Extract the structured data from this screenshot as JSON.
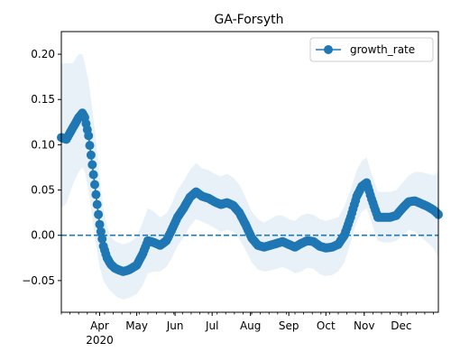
{
  "chart_data": {
    "type": "line",
    "title": "GA-Forsyth",
    "xlabel": "",
    "ylabel": "",
    "xlim": [
      "2020-03-01",
      "2020-12-31"
    ],
    "ylim": [
      -0.085,
      0.225
    ],
    "yticks": [
      -0.05,
      0.0,
      0.05,
      0.1,
      0.15,
      0.2
    ],
    "ytick_labels": [
      "−0.05",
      "0.00",
      "0.05",
      "0.10",
      "0.15",
      "0.20"
    ],
    "xticks": [
      {
        "date": "2020-04-01",
        "label": "Apr",
        "sublabel": "2020"
      },
      {
        "date": "2020-05-01",
        "label": "May",
        "sublabel": ""
      },
      {
        "date": "2020-06-01",
        "label": "Jun",
        "sublabel": ""
      },
      {
        "date": "2020-07-01",
        "label": "Jul",
        "sublabel": ""
      },
      {
        "date": "2020-08-01",
        "label": "Aug",
        "sublabel": ""
      },
      {
        "date": "2020-09-01",
        "label": "Sep",
        "sublabel": ""
      },
      {
        "date": "2020-10-01",
        "label": "Oct",
        "sublabel": ""
      },
      {
        "date": "2020-11-01",
        "label": "Nov",
        "sublabel": ""
      },
      {
        "date": "2020-12-01",
        "label": "Dec",
        "sublabel": ""
      }
    ],
    "grid": false,
    "legend": {
      "position": "top-right",
      "entries": [
        "growth_rate"
      ]
    },
    "reference_line": {
      "y": 0.0,
      "style": "dashed"
    },
    "colors": {
      "series": "#1f77b4",
      "band": "#1f77b4"
    },
    "series": [
      {
        "name": "growth_rate",
        "x": [
          "2020-03-01",
          "2020-03-05",
          "2020-03-10",
          "2020-03-15",
          "2020-03-18",
          "2020-03-20",
          "2020-03-23",
          "2020-03-26",
          "2020-03-29",
          "2020-04-01",
          "2020-04-04",
          "2020-04-07",
          "2020-04-10",
          "2020-04-13",
          "2020-04-16",
          "2020-04-20",
          "2020-04-25",
          "2020-05-01",
          "2020-05-06",
          "2020-05-10",
          "2020-05-15",
          "2020-05-20",
          "2020-05-25",
          "2020-05-29",
          "2020-06-03",
          "2020-06-08",
          "2020-06-13",
          "2020-06-18",
          "2020-06-23",
          "2020-06-28",
          "2020-07-03",
          "2020-07-08",
          "2020-07-13",
          "2020-07-18",
          "2020-07-23",
          "2020-07-28",
          "2020-08-02",
          "2020-08-07",
          "2020-08-12",
          "2020-08-17",
          "2020-08-22",
          "2020-08-27",
          "2020-09-01",
          "2020-09-06",
          "2020-09-11",
          "2020-09-16",
          "2020-09-21",
          "2020-09-26",
          "2020-10-01",
          "2020-10-06",
          "2020-10-11",
          "2020-10-16",
          "2020-10-21",
          "2020-10-26",
          "2020-10-30",
          "2020-11-03",
          "2020-11-07",
          "2020-11-12",
          "2020-11-17",
          "2020-11-22",
          "2020-11-27",
          "2020-12-02",
          "2020-12-07",
          "2020-12-12",
          "2020-12-17",
          "2020-12-22",
          "2020-12-27",
          "2020-12-31"
        ],
        "values": [
          0.108,
          0.106,
          0.118,
          0.13,
          0.135,
          0.13,
          0.11,
          0.078,
          0.045,
          0.012,
          -0.012,
          -0.025,
          -0.032,
          -0.036,
          -0.038,
          -0.04,
          -0.038,
          -0.033,
          -0.02,
          -0.006,
          -0.008,
          -0.011,
          -0.006,
          0.005,
          0.02,
          0.03,
          0.042,
          0.048,
          0.043,
          0.041,
          0.037,
          0.034,
          0.036,
          0.033,
          0.025,
          0.012,
          -0.003,
          -0.011,
          -0.013,
          -0.011,
          -0.009,
          -0.007,
          -0.01,
          -0.013,
          -0.009,
          -0.006,
          -0.007,
          -0.012,
          -0.014,
          -0.013,
          -0.01,
          0.0,
          0.02,
          0.043,
          0.054,
          0.058,
          0.04,
          0.02,
          0.02,
          0.02,
          0.022,
          0.03,
          0.037,
          0.038,
          0.035,
          0.032,
          0.028,
          0.023
        ],
        "lower": [
          0.03,
          0.035,
          0.055,
          0.07,
          0.075,
          0.07,
          0.05,
          0.02,
          -0.01,
          -0.035,
          -0.05,
          -0.057,
          -0.062,
          -0.066,
          -0.069,
          -0.071,
          -0.069,
          -0.065,
          -0.055,
          -0.042,
          -0.04,
          -0.04,
          -0.035,
          -0.026,
          -0.012,
          -0.002,
          0.01,
          0.018,
          0.015,
          0.012,
          0.008,
          0.004,
          0.006,
          0.004,
          -0.004,
          -0.016,
          -0.03,
          -0.038,
          -0.04,
          -0.039,
          -0.037,
          -0.035,
          -0.038,
          -0.042,
          -0.04,
          -0.036,
          -0.037,
          -0.043,
          -0.045,
          -0.044,
          -0.04,
          -0.03,
          -0.008,
          0.015,
          0.026,
          0.03,
          0.014,
          -0.006,
          -0.008,
          -0.008,
          -0.006,
          0.0,
          0.006,
          0.004,
          -0.002,
          -0.008,
          -0.014,
          -0.025
        ],
        "upper": [
          0.19,
          0.19,
          0.19,
          0.2,
          0.2,
          0.19,
          0.17,
          0.14,
          0.105,
          0.065,
          0.03,
          0.01,
          -0.002,
          -0.006,
          -0.008,
          -0.01,
          -0.008,
          -0.002,
          0.015,
          0.03,
          0.026,
          0.02,
          0.024,
          0.034,
          0.05,
          0.06,
          0.072,
          0.08,
          0.074,
          0.072,
          0.068,
          0.065,
          0.068,
          0.064,
          0.056,
          0.042,
          0.026,
          0.018,
          0.014,
          0.018,
          0.022,
          0.022,
          0.018,
          0.016,
          0.022,
          0.024,
          0.023,
          0.018,
          0.016,
          0.018,
          0.02,
          0.032,
          0.05,
          0.072,
          0.082,
          0.086,
          0.068,
          0.048,
          0.048,
          0.048,
          0.05,
          0.058,
          0.066,
          0.07,
          0.07,
          0.068,
          0.066,
          0.07
        ]
      }
    ]
  }
}
